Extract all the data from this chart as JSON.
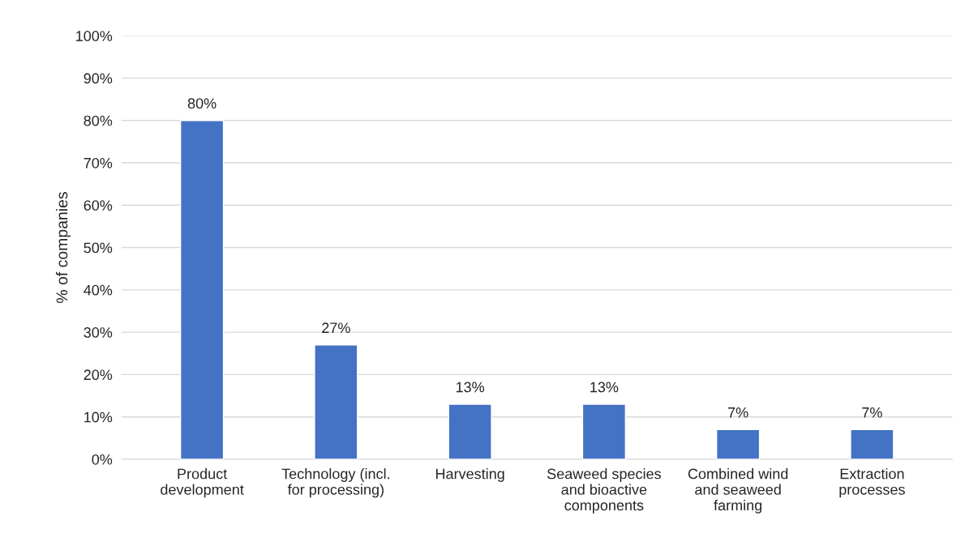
{
  "chart_data": {
    "type": "bar",
    "ylabel": "% of companies",
    "categories": [
      "Product\ndevelopment",
      "Technology (incl.\nfor processing)",
      "Harvesting",
      "Seaweed species\nand bioactive\ncomponents",
      "Combined wind\nand seaweed\nfarming",
      "Extraction\nprocesses"
    ],
    "values": [
      80,
      27,
      13,
      13,
      7,
      7
    ],
    "color": "#4472c4",
    "ylim": [
      0,
      100
    ],
    "yticks": [
      {
        "value": 0,
        "label": "0%"
      },
      {
        "value": 10,
        "label": "10%"
      },
      {
        "value": 20,
        "label": "20%"
      },
      {
        "value": 30,
        "label": "30%"
      },
      {
        "value": 40,
        "label": "40%"
      },
      {
        "value": 50,
        "label": "50%"
      },
      {
        "value": 60,
        "label": "60%"
      },
      {
        "value": 70,
        "label": "70%"
      },
      {
        "value": 80,
        "label": "80%"
      },
      {
        "value": 90,
        "label": "90%"
      },
      {
        "value": 100,
        "label": "100%"
      }
    ],
    "value_labels": [
      "80%",
      "27%",
      "13%",
      "13%",
      "7%",
      "7%"
    ],
    "grid": "y",
    "legend": false
  }
}
